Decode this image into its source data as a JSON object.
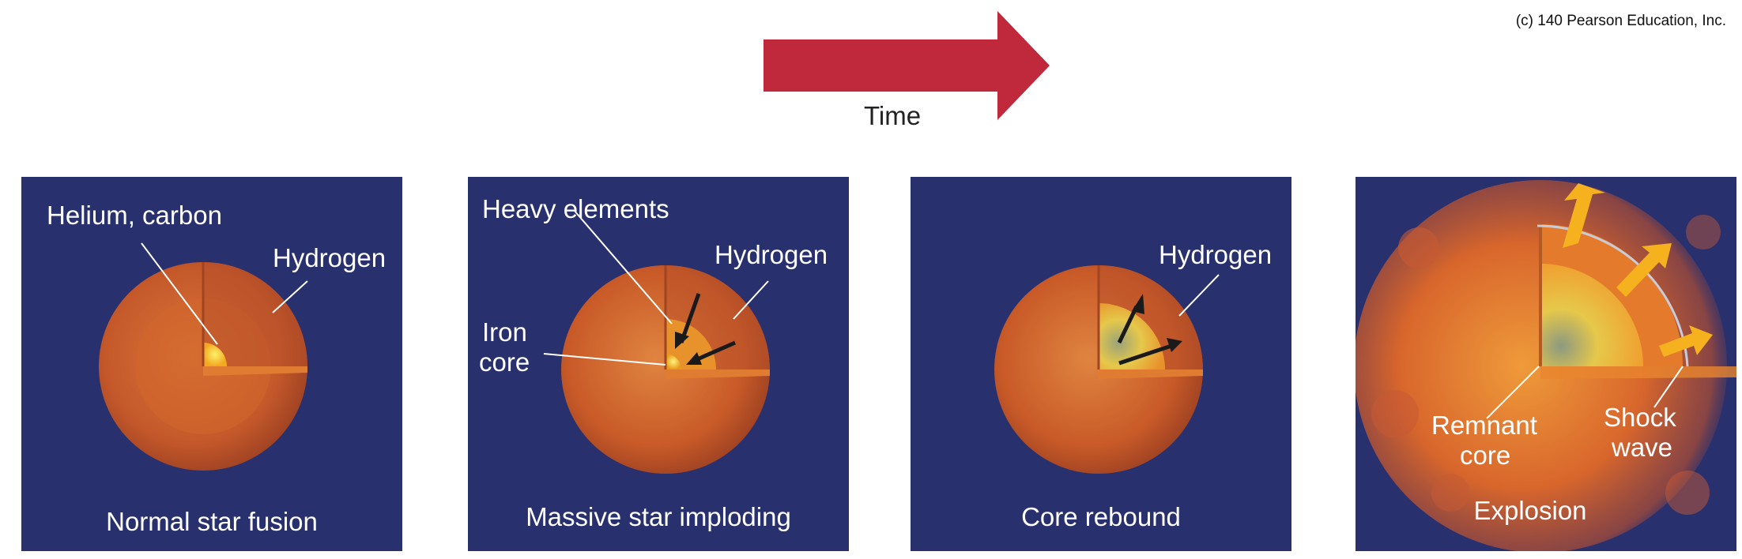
{
  "copyright": "(c) 140 Pearson Education, Inc.",
  "time_label": "Time",
  "colors": {
    "panel_bg": "#29306e",
    "arrow": "#c0283c",
    "star_outer": "#c85a28",
    "core_yellow": "#f5c518",
    "shock_arrow": "#f5b21e"
  },
  "panels": [
    {
      "caption": "Normal star fusion",
      "labels": {
        "inner": "Helium, carbon",
        "outer": "Hydrogen"
      }
    },
    {
      "caption": "Massive star imploding",
      "labels": {
        "inner": "Heavy elements",
        "outer": "Hydrogen",
        "core_line1": "Iron",
        "core_line2": "core"
      }
    },
    {
      "caption": "Core rebound",
      "labels": {
        "outer": "Hydrogen"
      }
    },
    {
      "caption": "Explosion",
      "labels": {
        "remnant_line1": "Remnant",
        "remnant_line2": "core",
        "shock_line1": "Shock",
        "shock_line2": "wave"
      }
    }
  ]
}
